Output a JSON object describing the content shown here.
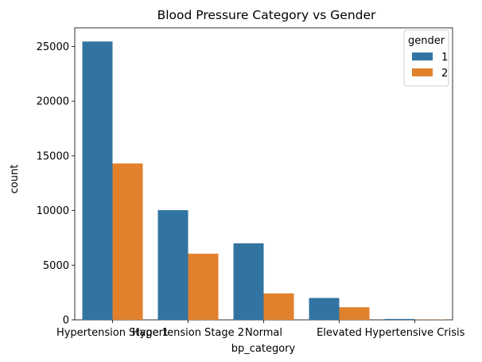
{
  "chart_data": {
    "type": "bar",
    "title": "Blood Pressure Category vs Gender",
    "xlabel": "bp_category",
    "ylabel": "count",
    "categories": [
      "Hypertension Stage 1",
      "Hypertension Stage 2",
      "Normal",
      "Elevated",
      "Hypertensive Crisis"
    ],
    "series": [
      {
        "name": "1",
        "color": "#3274a1",
        "values": [
          25450,
          10030,
          7000,
          2000,
          80
        ]
      },
      {
        "name": "2",
        "color": "#e1812c",
        "values": [
          14300,
          6050,
          2420,
          1150,
          20
        ]
      }
    ],
    "ylim": [
      0,
      26700
    ],
    "yticks": [
      0,
      5000,
      10000,
      15000,
      20000,
      25000
    ],
    "ytick_labels": [
      "0",
      "5000",
      "10000",
      "15000",
      "20000",
      "25000"
    ],
    "legend": {
      "title": "gender",
      "placement": "top-right"
    },
    "grid": false
  }
}
